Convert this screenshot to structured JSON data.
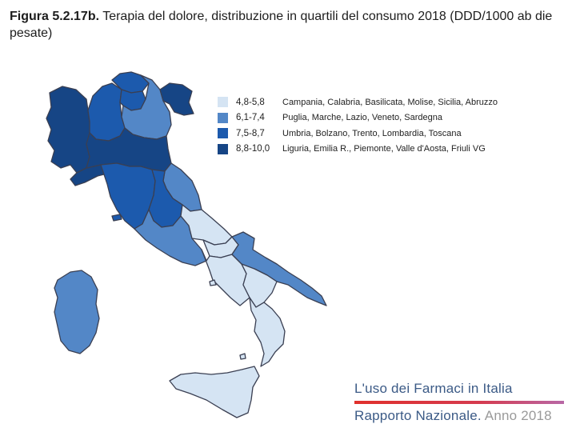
{
  "figure": {
    "label": "Figura 5.2.17b.",
    "title": "Terapia del dolore, distribuzione in quartili del consumo 2018 (DDD/1000 ab die pesate)"
  },
  "legend": [
    {
      "range": "4,8-5,8",
      "regions": "Campania, Calabria, Basilicata, Molise, Sicilia, Abruzzo",
      "color": "#d5e4f3"
    },
    {
      "range": "6,1-7,4",
      "regions": "Puglia, Marche, Lazio, Veneto, Sardegna",
      "color": "#5387c7"
    },
    {
      "range": "7,5-8,7",
      "regions": "Umbria, Bolzano, Trento, Lombardia, Toscana",
      "color": "#1c5aad"
    },
    {
      "range": "8,8-10,0",
      "regions": "Liguria, Emilia R., Piemonte, Valle d'Aosta, Friuli VG",
      "color": "#164585"
    }
  ],
  "footer": {
    "line1": "L'uso dei Farmaci in Italia",
    "line2_main": "Rapporto Nazionale.",
    "line2_year": "Anno 2018"
  },
  "map": {
    "border_color": "#3a3f52"
  }
}
